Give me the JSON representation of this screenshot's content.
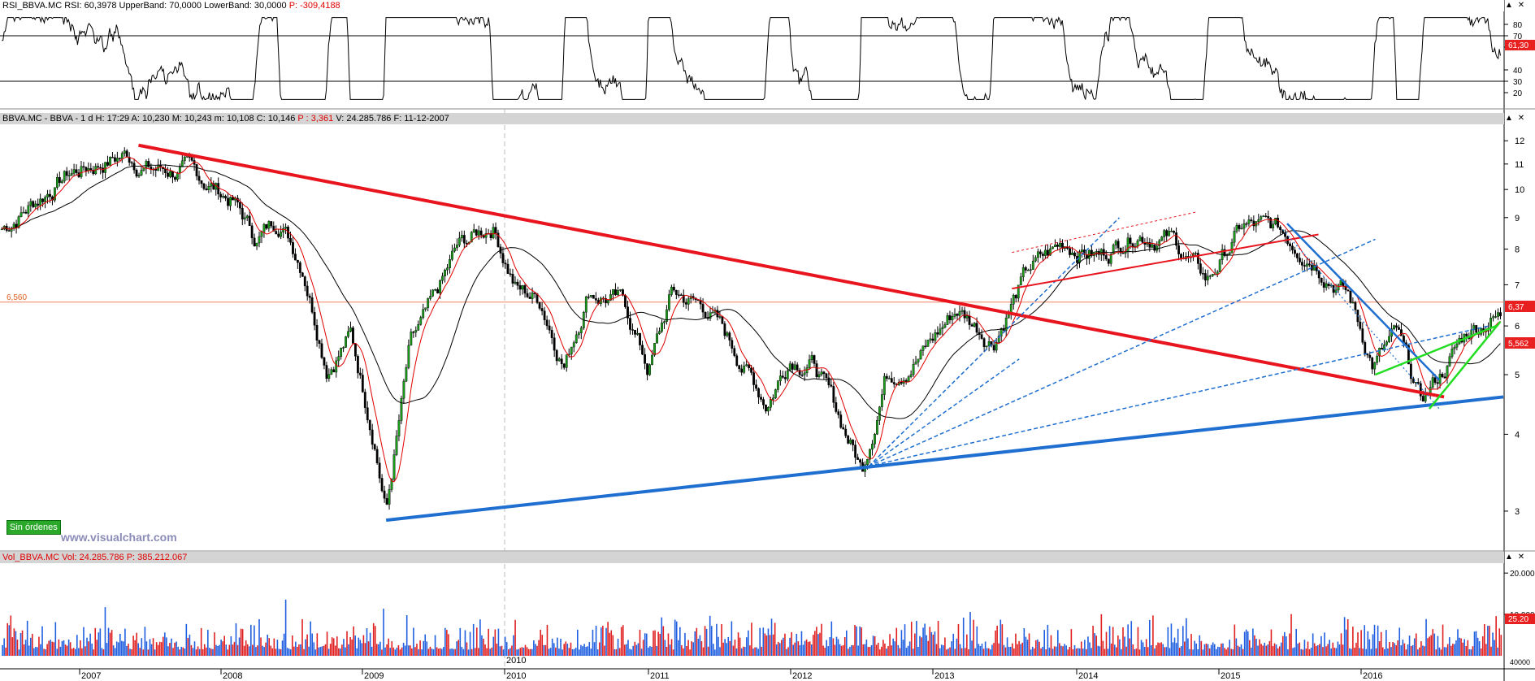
{
  "rsi_panel": {
    "symbol": "RSI_BBVA.MC",
    "rsi_label": "RSI: 60,3978",
    "upper_label": "UpperBand: 70,0000",
    "lower_label": "LowerBand: 30,0000",
    "p_label": "P: -309,4188",
    "axis_ticks": [
      "80",
      "70",
      "60",
      "40",
      "30",
      "20"
    ],
    "value_tag": "61,30"
  },
  "price_panel": {
    "header": "BBVA.MC - BBVA -  1 d  H: 17:29  A: 10,230  M: 10,243  m: 10,108  C: 10,146",
    "p_label": "P : 3,361",
    "v_label": "V: 24.285.786  F: 11-12-2007",
    "axis_ticks": [
      "12",
      "11",
      "10",
      "9",
      "8",
      "7",
      "6",
      "5",
      "4",
      "3"
    ],
    "level_label": "6,560",
    "price_tags": [
      "6,37",
      "5,562"
    ],
    "orders_badge": "Sin órdenes",
    "watermark": "www.visualchart.com"
  },
  "volume_panel": {
    "symbol": "Vol_BBVA.MC",
    "vol_label": "Vol: 24.285.786",
    "p_label": "P: 385.212.067",
    "axis_ticks": [
      "20.000.000",
      "10.000.000",
      "25.20",
      "40000"
    ]
  },
  "x_axis": {
    "year_labels": [
      "2007",
      "2008",
      "2009",
      "2010",
      "2011",
      "2012",
      "2013",
      "2014",
      "2015",
      "2016"
    ],
    "marker_label": "2010"
  },
  "controls": {
    "scroll_up": "▲",
    "close": "✕"
  },
  "colors": {
    "background": "#ffffff",
    "header_bg": "#d4d4d4",
    "trend_red": "#e8141e",
    "trend_blue": "#1f6fd1",
    "trend_green": "#22dd22",
    "ma_short": "#e00000",
    "ma_long": "#000000",
    "candle_up": "#1a9b1a",
    "candle_down": "#000000",
    "volume_up": "#1f5fe0",
    "volume_down": "#e02020",
    "level_line": "#f08060"
  },
  "chart_data": [
    {
      "type": "line",
      "title": "RSI_BBVA.MC",
      "bands": {
        "upper": 70,
        "lower": 30
      },
      "ylim": [
        10,
        90
      ],
      "last_value": 61.3
    },
    {
      "type": "candlestick",
      "title": "BBVA.MC - BBVA",
      "scale": "log",
      "ylim": [
        2.6,
        12.8
      ],
      "x_range": [
        "2006-06",
        "2016-12"
      ],
      "weekly_close": [
        {
          "x": "2006-06",
          "y": 8.5
        },
        {
          "x": "2006-09",
          "y": 9.5
        },
        {
          "x": "2006-12",
          "y": 10.6
        },
        {
          "x": "2007-03",
          "y": 11.1
        },
        {
          "x": "2007-05",
          "y": 11.4
        },
        {
          "x": "2007-07",
          "y": 10.8
        },
        {
          "x": "2007-10",
          "y": 10.7
        },
        {
          "x": "2007-12",
          "y": 10.2
        },
        {
          "x": "2008-02",
          "y": 9.6
        },
        {
          "x": "2008-04",
          "y": 8.3
        },
        {
          "x": "2008-06",
          "y": 9.0
        },
        {
          "x": "2008-08",
          "y": 7.5
        },
        {
          "x": "2008-10",
          "y": 5.2
        },
        {
          "x": "2008-12",
          "y": 5.8
        },
        {
          "x": "2009-02",
          "y": 4.0
        },
        {
          "x": "2009-03",
          "y": 3.0
        },
        {
          "x": "2009-05",
          "y": 5.5
        },
        {
          "x": "2009-07",
          "y": 6.5
        },
        {
          "x": "2009-09",
          "y": 8.0
        },
        {
          "x": "2009-12",
          "y": 8.8
        },
        {
          "x": "2010-02",
          "y": 6.9
        },
        {
          "x": "2010-04",
          "y": 6.6
        },
        {
          "x": "2010-06",
          "y": 5.2
        },
        {
          "x": "2010-08",
          "y": 6.9
        },
        {
          "x": "2010-11",
          "y": 6.5
        },
        {
          "x": "2011-01",
          "y": 5.1
        },
        {
          "x": "2011-03",
          "y": 6.8
        },
        {
          "x": "2011-06",
          "y": 6.4
        },
        {
          "x": "2011-08",
          "y": 5.6
        },
        {
          "x": "2011-11",
          "y": 4.5
        },
        {
          "x": "2012-01",
          "y": 5.4
        },
        {
          "x": "2012-03",
          "y": 5.2
        },
        {
          "x": "2012-06",
          "y": 3.9
        },
        {
          "x": "2012-07",
          "y": 3.5
        },
        {
          "x": "2012-09",
          "y": 5.0
        },
        {
          "x": "2012-12",
          "y": 5.4
        },
        {
          "x": "2013-03",
          "y": 6.4
        },
        {
          "x": "2013-06",
          "y": 5.7
        },
        {
          "x": "2013-09",
          "y": 7.4
        },
        {
          "x": "2013-12",
          "y": 8.2
        },
        {
          "x": "2014-03",
          "y": 7.8
        },
        {
          "x": "2014-06",
          "y": 8.6
        },
        {
          "x": "2014-09",
          "y": 8.3
        },
        {
          "x": "2014-12",
          "y": 7.1
        },
        {
          "x": "2015-03",
          "y": 8.7
        },
        {
          "x": "2015-06",
          "y": 8.6
        },
        {
          "x": "2015-09",
          "y": 7.8
        },
        {
          "x": "2015-12",
          "y": 6.7
        },
        {
          "x": "2016-02",
          "y": 5.2
        },
        {
          "x": "2016-04",
          "y": 5.8
        },
        {
          "x": "2016-06",
          "y": 4.5
        },
        {
          "x": "2016-08",
          "y": 5.1
        },
        {
          "x": "2016-10",
          "y": 5.9
        },
        {
          "x": "2016-12",
          "y": 6.2
        }
      ],
      "horizontal_levels": [
        6.56
      ],
      "trendlines": [
        {
          "color": "red",
          "from": {
            "x": "2007-06",
            "y": 11.8
          },
          "to": {
            "x": "2016-08",
            "y": 4.6
          }
        },
        {
          "color": "blue",
          "from": {
            "x": "2009-03",
            "y": 2.9
          },
          "to": {
            "x": "2017-01",
            "y": 4.6
          }
        }
      ],
      "moving_averages": [
        "short (red)",
        "long (black)"
      ]
    },
    {
      "type": "bar",
      "title": "Vol_BBVA.MC",
      "ylim": [
        0,
        22000000
      ],
      "last_value": 24285786
    }
  ]
}
